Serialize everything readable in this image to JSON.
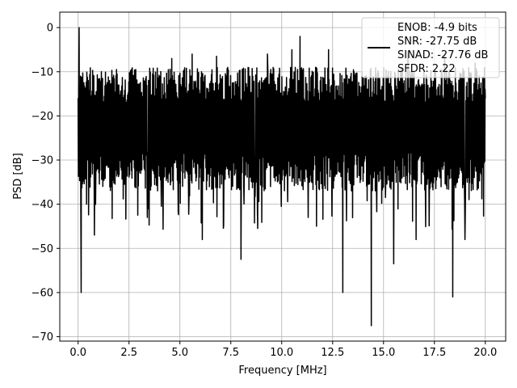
{
  "chart_data": {
    "type": "line",
    "xlabel": "Frequency [MHz]",
    "ylabel": "PSD [dB]",
    "xlim": [
      -0.9,
      21.0
    ],
    "ylim": [
      -71.0,
      3.5
    ],
    "xticks": [
      0.0,
      2.5,
      5.0,
      7.5,
      10.0,
      12.5,
      15.0,
      17.5,
      20.0
    ],
    "xtick_labels": [
      "0.0",
      "2.5",
      "5.0",
      "7.5",
      "10.0",
      "12.5",
      "15.0",
      "17.5",
      "20.0"
    ],
    "yticks": [
      0,
      -10,
      -20,
      -30,
      -40,
      -50,
      -60,
      -70
    ],
    "ytick_labels": [
      "0",
      "−10",
      "−20",
      "−30",
      "−40",
      "−50",
      "−60",
      "−70"
    ],
    "grid": true,
    "legend_position": "top-right",
    "line_color": "#000000",
    "series": [
      {
        "name": "ENOB: -4.9 bits\nSNR: -27.75 dB\nSINAD: -27.76 dB\nSFDR: 2.22",
        "legend_lines": [
          "ENOB: -4.9 bits",
          "SNR: -27.75 dB",
          "SINAD: -27.76 dB",
          "SFDR: 2.22"
        ],
        "x_range": [
          0.0,
          20.0
        ],
        "description_points": {
          "x": [
            0.0,
            0.05,
            0.12,
            0.15,
            0.5,
            0.8,
            2.0,
            3.4,
            4.6,
            5.6,
            6.1,
            6.8,
            8.0,
            9.3,
            10.5,
            10.9,
            11.3,
            12.3,
            13.0,
            14.4,
            15.5,
            16.2,
            16.6,
            18.0,
            18.4,
            19.0,
            19.5,
            20.0
          ],
          "y": [
            -16.0,
            0.0,
            -11.0,
            -60.0,
            -12.0,
            -47.0,
            -13.0,
            -43.0,
            -7.0,
            -6.0,
            -48.0,
            -6.5,
            -52.5,
            -6.0,
            -5.0,
            -2.0,
            -43.0,
            -5.0,
            -60.0,
            -67.5,
            -53.5,
            -5.5,
            -48.0,
            -6.0,
            -61.0,
            -48.0,
            -8.0,
            -16.0
          ]
        }
      }
    ]
  }
}
